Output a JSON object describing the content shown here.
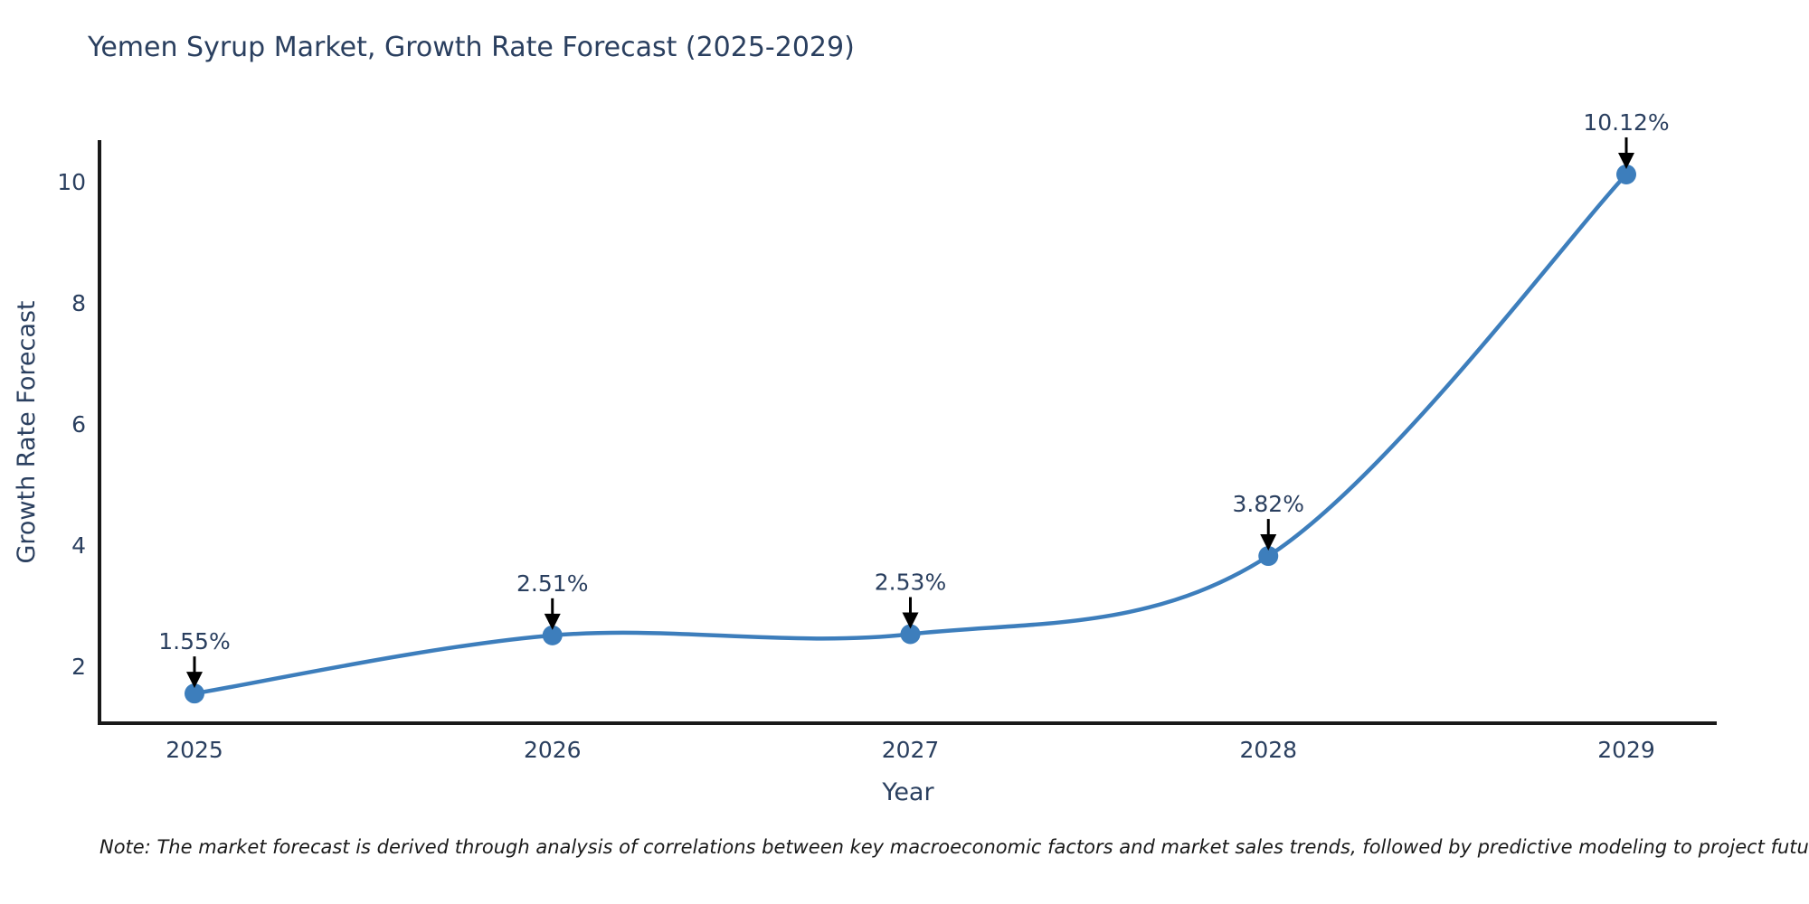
{
  "title": "Yemen Syrup Market, Growth Rate Forecast (2025-2029)",
  "note": "Note: The market forecast is derived through analysis of correlations between key macroeconomic factors and market sales trends, followed by predictive modeling to project future sales",
  "colors": {
    "text": "#2a3f5f",
    "axis": "#191919",
    "line": "#3d7ebc",
    "marker": "#3d7ebc",
    "arrow": "#000000",
    "background": "#ffffff"
  },
  "chart_data": {
    "type": "line",
    "title": "Yemen Syrup Market, Growth Rate Forecast (2025-2029)",
    "categories": [
      "2025",
      "2026",
      "2027",
      "2028",
      "2029"
    ],
    "values": [
      1.55,
      2.51,
      2.53,
      3.82,
      10.12
    ],
    "point_labels": [
      "1.55%",
      "2.51%",
      "2.53%",
      "3.82%",
      "10.12%"
    ],
    "xlabel": "Year",
    "ylabel": "Growth Rate Forecast",
    "yticks": [
      2,
      4,
      6,
      8,
      10
    ],
    "ylim": [
      1.06,
      10.7
    ],
    "line_shape": "spline",
    "grid": false,
    "legend_position": "none",
    "annotation_style": "value label with black arrow pointing down at each marker"
  }
}
